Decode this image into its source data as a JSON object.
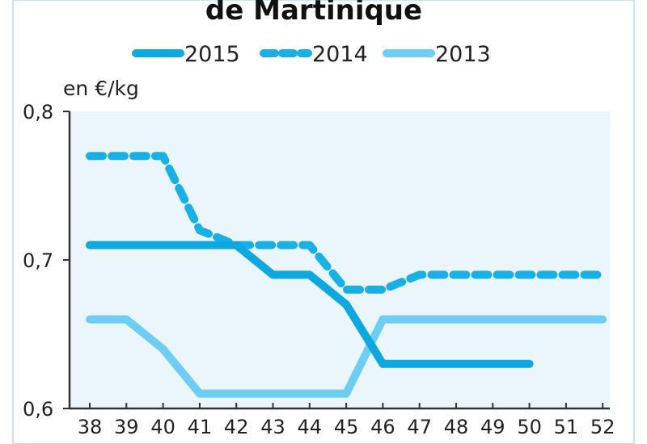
{
  "chart_data": {
    "type": "line",
    "title": "de Martinique",
    "ylabel": "en €/kg",
    "xlabel": "",
    "x": [
      38,
      39,
      40,
      41,
      42,
      43,
      44,
      45,
      46,
      47,
      48,
      49,
      50,
      51,
      52
    ],
    "xlim": [
      38,
      52
    ],
    "ylim": [
      0.6,
      0.8
    ],
    "yticks": [
      0.6,
      0.7,
      0.8
    ],
    "ytick_labels": [
      "0,6",
      "0,7",
      "0,8"
    ],
    "xtick_labels": [
      "38",
      "39",
      "40",
      "41",
      "42",
      "43",
      "44",
      "45",
      "46",
      "47",
      "48",
      "49",
      "50",
      "51",
      "52"
    ],
    "legend_position": "top",
    "series": [
      {
        "name": "2015",
        "style": "solid",
        "color": "#0da8e0",
        "points": [
          [
            38,
            0.71
          ],
          [
            39,
            0.71
          ],
          [
            40,
            0.71
          ],
          [
            41,
            0.71
          ],
          [
            42,
            0.71
          ],
          [
            43,
            0.69
          ],
          [
            44,
            0.69
          ],
          [
            45,
            0.67
          ],
          [
            46,
            0.63
          ],
          [
            47,
            0.63
          ],
          [
            48,
            0.63
          ],
          [
            49,
            0.63
          ],
          [
            50,
            0.63
          ]
        ]
      },
      {
        "name": "2014",
        "style": "dashed",
        "color": "#19b0e6",
        "points": [
          [
            38,
            0.77
          ],
          [
            39,
            0.77
          ],
          [
            40,
            0.77
          ],
          [
            41,
            0.72
          ],
          [
            42,
            0.71
          ],
          [
            43,
            0.71
          ],
          [
            44,
            0.71
          ],
          [
            45,
            0.68
          ],
          [
            46,
            0.68
          ],
          [
            47,
            0.69
          ],
          [
            48,
            0.69
          ],
          [
            49,
            0.69
          ],
          [
            50,
            0.69
          ],
          [
            51,
            0.69
          ],
          [
            52,
            0.69
          ]
        ]
      },
      {
        "name": "2013",
        "style": "solid",
        "color": "#6ecdf2",
        "points": [
          [
            38,
            0.66
          ],
          [
            39,
            0.66
          ],
          [
            40,
            0.64
          ],
          [
            41,
            0.61
          ],
          [
            42,
            0.61
          ],
          [
            43,
            0.61
          ],
          [
            44,
            0.61
          ],
          [
            45,
            0.61
          ],
          [
            46,
            0.66
          ],
          [
            47,
            0.66
          ],
          [
            48,
            0.66
          ],
          [
            49,
            0.66
          ],
          [
            50,
            0.66
          ],
          [
            51,
            0.66
          ],
          [
            52,
            0.66
          ]
        ]
      }
    ],
    "colors": {
      "plot_background": "#eaf6fc",
      "axis": "#333333",
      "frame": "#c9e4f2"
    }
  }
}
